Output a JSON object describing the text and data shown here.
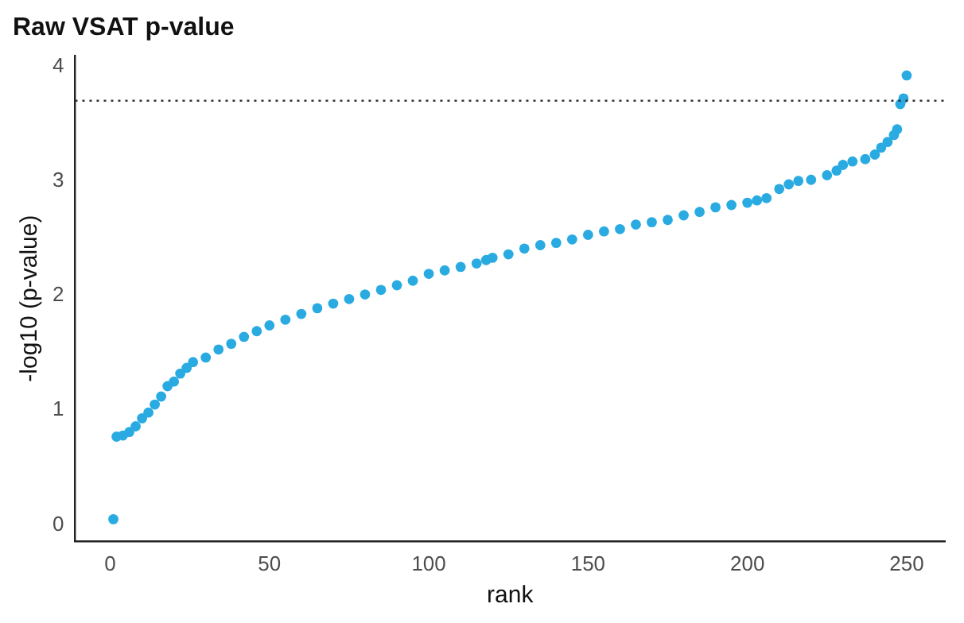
{
  "chart_data": {
    "type": "scatter",
    "title": "Raw VSAT p-value",
    "xlabel": "rank",
    "ylabel": "-log10 (p-value)",
    "x": [
      1,
      2,
      4,
      6,
      8,
      10,
      12,
      14,
      16,
      18,
      20,
      22,
      24,
      26,
      30,
      34,
      38,
      42,
      46,
      50,
      55,
      60,
      65,
      70,
      75,
      80,
      85,
      90,
      95,
      100,
      105,
      110,
      115,
      118,
      120,
      125,
      130,
      135,
      140,
      145,
      150,
      155,
      160,
      165,
      170,
      175,
      180,
      185,
      190,
      195,
      200,
      203,
      206,
      210,
      213,
      216,
      220,
      225,
      228,
      230,
      233,
      237,
      240,
      242,
      244,
      246,
      247,
      248,
      249,
      250
    ],
    "series": [
      {
        "color": "#29abe2",
        "values": [
          0.05,
          0.77,
          0.78,
          0.81,
          0.86,
          0.93,
          0.98,
          1.05,
          1.12,
          1.21,
          1.25,
          1.32,
          1.37,
          1.42,
          1.46,
          1.53,
          1.58,
          1.64,
          1.69,
          1.74,
          1.79,
          1.84,
          1.89,
          1.93,
          1.97,
          2.01,
          2.05,
          2.09,
          2.13,
          2.19,
          2.22,
          2.25,
          2.28,
          2.31,
          2.33,
          2.36,
          2.41,
          2.44,
          2.46,
          2.49,
          2.53,
          2.56,
          2.58,
          2.62,
          2.64,
          2.66,
          2.7,
          2.73,
          2.77,
          2.79,
          2.81,
          2.83,
          2.85,
          2.93,
          2.97,
          3.0,
          3.01,
          3.05,
          3.09,
          3.14,
          3.17,
          3.19,
          3.23,
          3.29,
          3.34,
          3.4,
          3.45,
          3.67,
          3.72,
          3.92
        ]
      }
    ],
    "xlim": [
      -11,
      262
    ],
    "ylim": [
      -0.14,
      4.09
    ],
    "xticks": [
      0,
      50,
      100,
      150,
      200,
      250
    ],
    "yticks": [
      0,
      1,
      2,
      3,
      4
    ],
    "ref_lines": [
      {
        "axis": "y",
        "value": 3.7,
        "color": "#333333",
        "line_style": "dotted"
      }
    ],
    "marker": "circle",
    "grid": false,
    "legend": false
  }
}
